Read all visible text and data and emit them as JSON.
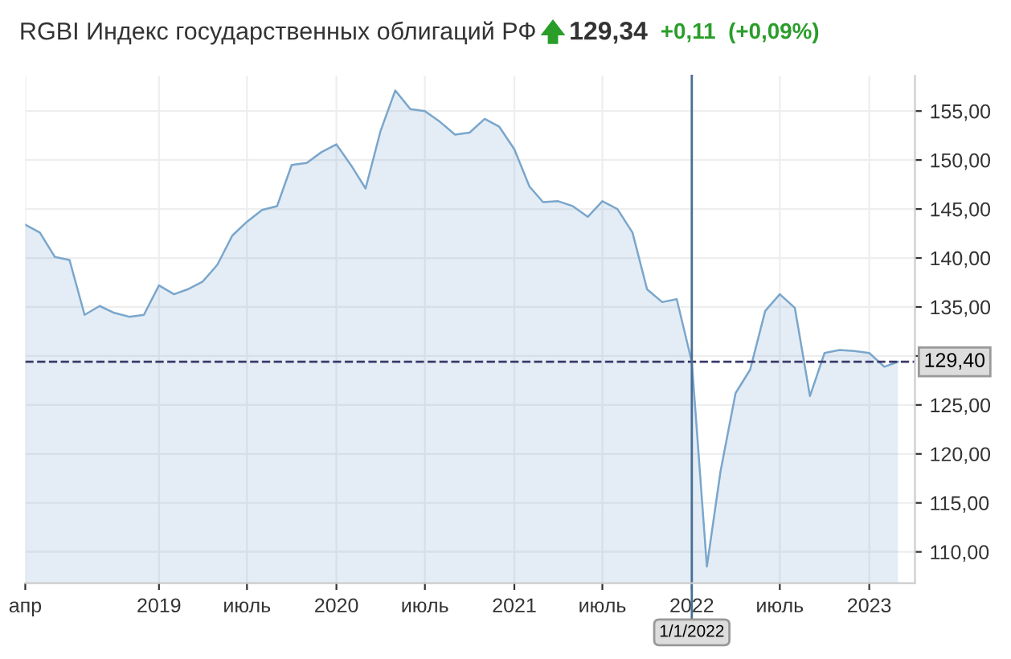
{
  "chart_data": {
    "type": "area",
    "title": "RGBI Индекс государственных облигаций РФ",
    "annotations": [
      "129,34",
      "+0,11",
      "(+0,09%)"
    ],
    "x": [
      "2018-04",
      "2018-05",
      "2018-06",
      "2018-07",
      "2018-08",
      "2018-09",
      "2018-10",
      "2018-11",
      "2018-12",
      "2019-01",
      "2019-02",
      "2019-03",
      "2019-04",
      "2019-05",
      "2019-06",
      "2019-07",
      "2019-08",
      "2019-09",
      "2019-10",
      "2019-11",
      "2019-12",
      "2020-01",
      "2020-02",
      "2020-03",
      "2020-04",
      "2020-05",
      "2020-06",
      "2020-07",
      "2020-08",
      "2020-09",
      "2020-10",
      "2020-11",
      "2020-12",
      "2021-01",
      "2021-02",
      "2021-03",
      "2021-04",
      "2021-05",
      "2021-06",
      "2021-07",
      "2021-08",
      "2021-09",
      "2021-10",
      "2021-11",
      "2021-12",
      "2022-01",
      "2022-02",
      "2022-03",
      "2022-04",
      "2022-05",
      "2022-06",
      "2022-07",
      "2022-08",
      "2022-09",
      "2022-10",
      "2022-11",
      "2022-12",
      "2023-01",
      "2023-02",
      "2023-03"
    ],
    "series": [
      {
        "color": "#7aa6cc",
        "values": [
          143.4,
          142.6,
          140.1,
          139.8,
          134.2,
          135.1,
          134.4,
          134.0,
          134.2,
          137.2,
          136.3,
          136.8,
          137.6,
          139.3,
          142.3,
          143.7,
          144.9,
          145.3,
          149.5,
          149.7,
          150.8,
          151.6,
          149.4,
          147.1,
          153.0,
          157.1,
          155.2,
          155.0,
          153.9,
          152.6,
          152.8,
          154.2,
          153.4,
          151.1,
          147.3,
          145.7,
          145.8,
          145.3,
          144.2,
          145.8,
          145.0,
          142.6,
          136.8,
          135.5,
          135.8,
          129.4,
          108.5,
          118.2,
          126.2,
          128.6,
          134.6,
          136.3,
          134.9,
          125.9,
          130.3,
          130.6,
          130.5,
          130.3,
          128.9,
          129.4
        ]
      }
    ],
    "xlim": [
      "2018-04-01",
      "2023-04-05"
    ],
    "xticks": [
      {
        "value": "2018-04-01",
        "label": "апр"
      },
      {
        "value": "2019-01-01",
        "label": "2019"
      },
      {
        "value": "2019-07-01",
        "label": "июль"
      },
      {
        "value": "2020-01-01",
        "label": "2020"
      },
      {
        "value": "2020-07-01",
        "label": "июль"
      },
      {
        "value": "2021-01-01",
        "label": "2021"
      },
      {
        "value": "2021-07-01",
        "label": "июль"
      },
      {
        "value": "2022-01-01",
        "label": "2022"
      },
      {
        "value": "2022-07-01",
        "label": "июль"
      },
      {
        "value": "2023-01-01",
        "label": "2023"
      }
    ],
    "ylim": [
      106.8,
      158.6
    ],
    "yticks": [
      {
        "value": 110,
        "label": "110,00"
      },
      {
        "value": 115,
        "label": "115,00"
      },
      {
        "value": 120,
        "label": "120,00"
      },
      {
        "value": 125,
        "label": "125,00"
      },
      {
        "value": 130,
        "label": null
      },
      {
        "value": 135,
        "label": "135,00"
      },
      {
        "value": 140,
        "label": "140,00"
      },
      {
        "value": 145,
        "label": "145,00"
      },
      {
        "value": 150,
        "label": "150,00"
      },
      {
        "value": 155,
        "label": "155,00"
      }
    ],
    "ref_lines": [
      {
        "axis": "y",
        "value": 129.4,
        "label": "129,40",
        "color": "#3a3a6a",
        "line_style": "dashed"
      },
      {
        "axis": "x",
        "value": "2022-01-01",
        "label": "1/1/2022",
        "color": "#4a6f95",
        "line_style": "solid"
      }
    ],
    "grid": true,
    "legend": false
  }
}
